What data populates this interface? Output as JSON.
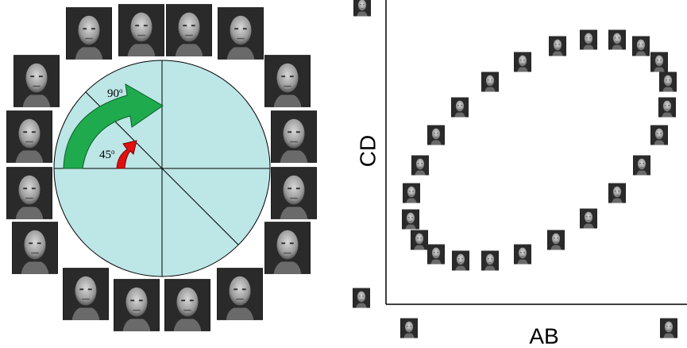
{
  "labels": {
    "angle_large": {
      "value": "90",
      "unit": "o"
    },
    "angle_small": {
      "value": "45",
      "unit": "o"
    },
    "y_axis": "CD",
    "x_axis": "AB"
  }
}
